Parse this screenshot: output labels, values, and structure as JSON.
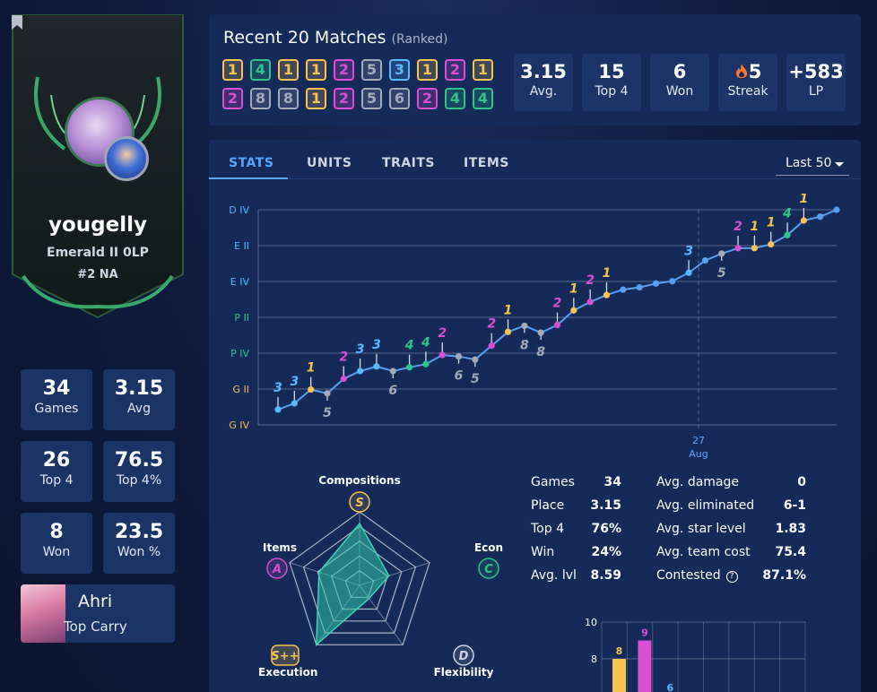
{
  "profile": {
    "username": "yougelly",
    "rank": "Emerald II 0LP",
    "region_rank": "#2 NA",
    "stats": [
      {
        "value": "34",
        "label": "Games"
      },
      {
        "value": "3.15",
        "label": "Avg"
      },
      {
        "value": "26",
        "label": "Top 4"
      },
      {
        "value": "76.5",
        "label": "Top 4%"
      },
      {
        "value": "8",
        "label": "Won"
      },
      {
        "value": "23.5",
        "label": "Won %"
      }
    ],
    "top_carry": {
      "name": "Ahri",
      "role": "Top Carry"
    }
  },
  "recent": {
    "title": "Recent 20 Matches",
    "subtitle": "(Ranked)",
    "placements_row1": [
      "1",
      "4",
      "1",
      "1",
      "2",
      "5",
      "3",
      "1",
      "2",
      "1"
    ],
    "placements_row2": [
      "2",
      "8",
      "8",
      "1",
      "2",
      "5",
      "6",
      "2",
      "4",
      "4"
    ],
    "summary": [
      {
        "value": "3.15",
        "label": "Avg."
      },
      {
        "value": "15",
        "label": "Top 4"
      },
      {
        "value": "6",
        "label": "Won"
      },
      {
        "value": "5",
        "label": "Streak"
      },
      {
        "value": "+583",
        "label": "LP"
      }
    ]
  },
  "tabs": [
    "STATS",
    "UNITS",
    "TRAITS",
    "ITEMS"
  ],
  "active_tab": "STATS",
  "filter": "Last 50",
  "placement_colors": {
    "1": "#f5c451",
    "2": "#d94fd1",
    "3": "#5ab8ff",
    "4": "#2fc48a",
    "5": "#a3aab8",
    "6": "#a3aab8",
    "7": "#a3aab8",
    "8": "#a3aab8"
  },
  "chart_data": {
    "type": "line",
    "y_tick_labels": [
      "D IV",
      "E II",
      "E IV",
      "P II",
      "P IV",
      "G II",
      "G IV"
    ],
    "x_tick_label": "27",
    "x_tick_sublabel": "Aug",
    "series": [
      {
        "values": [
          1.0,
          1.4,
          2.3,
          2.05,
          3.0,
          3.5,
          3.8,
          3.5,
          3.75,
          3.95,
          4.55,
          4.45,
          4.25,
          5.15,
          6.05,
          6.45,
          6.0,
          6.5,
          7.45,
          8.0,
          8.45,
          8.8,
          8.95,
          9.2,
          9.35,
          9.9,
          10.7,
          11.15,
          11.5,
          11.5,
          11.75,
          12.35,
          13.3,
          13.55,
          14.0
        ]
      }
    ],
    "placements": [
      "3",
      "3",
      "1",
      "5",
      "2",
      "3",
      "3",
      "6",
      "4",
      "4",
      "2",
      "6",
      "5",
      "2",
      "1",
      "8",
      "8",
      "2",
      "1",
      "2",
      "1",
      "3",
      "5",
      "2",
      "1",
      "1",
      "4",
      "1"
    ],
    "ylim": [
      0,
      14
    ]
  },
  "radar": {
    "axes": [
      {
        "name": "Compositions",
        "grade": "S",
        "color": "#f5c451"
      },
      {
        "name": "Econ",
        "grade": "C",
        "color": "#2fc48a"
      },
      {
        "name": "Flexibility",
        "grade": "D",
        "color": "#d0d6e2"
      },
      {
        "name": "Execution",
        "grade": "S++",
        "color": "#f5c451"
      },
      {
        "name": "Items",
        "grade": "A",
        "color": "#d94fd1"
      }
    ],
    "values": [
      0.84,
      0.42,
      0.22,
      1.0,
      0.58
    ]
  },
  "left_table": [
    {
      "label": "Games",
      "value": "34"
    },
    {
      "label": "Place",
      "value": "3.15"
    },
    {
      "label": "Top 4",
      "value": "76%"
    },
    {
      "label": "Win",
      "value": "24%"
    },
    {
      "label": "Avg. lvl",
      "value": "8.59"
    }
  ],
  "right_table": [
    {
      "label": "Avg. damage",
      "value": "0"
    },
    {
      "label": "Avg. eliminated",
      "value": "6-1"
    },
    {
      "label": "Avg. star level",
      "value": "1.83"
    },
    {
      "label": "Avg. team cost",
      "value": "75.4"
    },
    {
      "label": "Contested",
      "value": "87.1%"
    }
  ],
  "bar_chart": {
    "type": "bar",
    "y_ticks": [
      "10",
      "8",
      "6"
    ],
    "values": [
      8,
      9,
      6
    ],
    "labels": [
      "8",
      "9",
      "6"
    ],
    "colors": [
      "#f5c451",
      "#d94fd1",
      "#5ab8ff"
    ],
    "ylim": [
      0,
      10
    ]
  }
}
